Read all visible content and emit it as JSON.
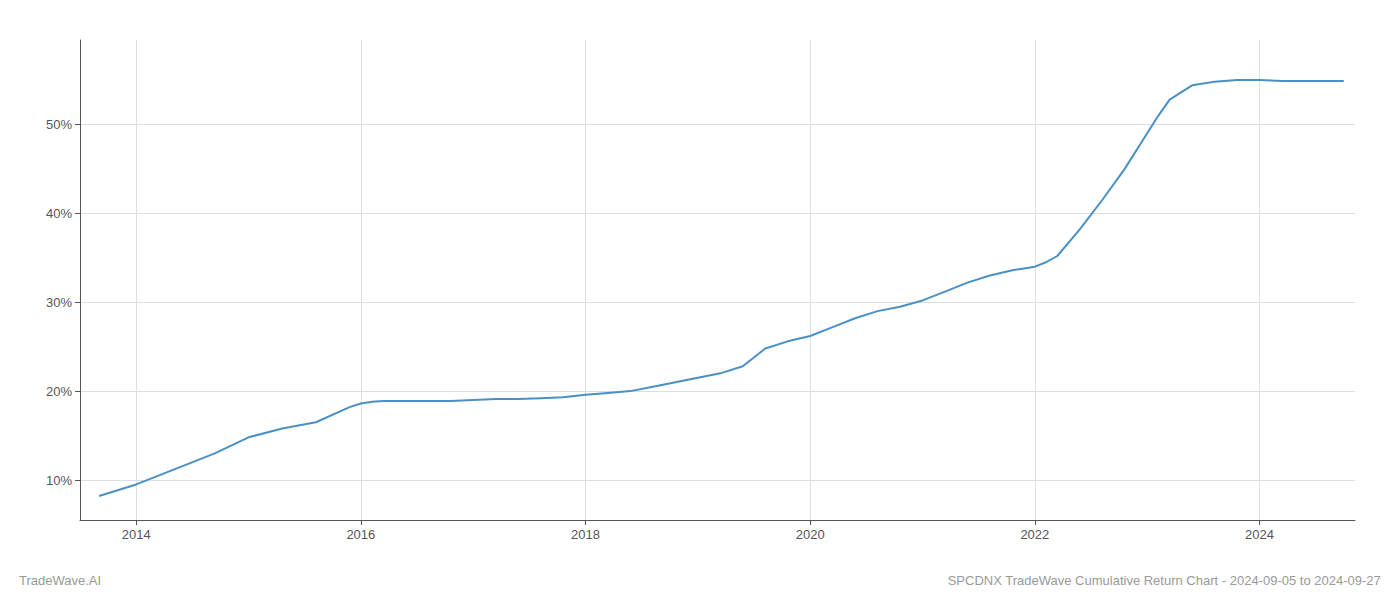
{
  "chart_data": {
    "type": "line",
    "title": "SPCDNX TradeWave Cumulative Return Chart - 2024-09-05 to 2024-09-27",
    "annotations": [
      "TradeWave.AI"
    ],
    "color": "#4a90c4",
    "grid": true,
    "x": [
      2013.67,
      2014.0,
      2014.3,
      2014.7,
      2015.0,
      2015.3,
      2015.6,
      2015.9,
      2016.0,
      2016.1,
      2016.2,
      2016.4,
      2016.6,
      2016.8,
      2017.0,
      2017.2,
      2017.4,
      2017.6,
      2017.8,
      2018.0,
      2018.2,
      2018.4,
      2018.6,
      2018.8,
      2019.0,
      2019.2,
      2019.4,
      2019.6,
      2019.8,
      2020.0,
      2020.2,
      2020.4,
      2020.6,
      2020.8,
      2021.0,
      2021.2,
      2021.4,
      2021.6,
      2021.8,
      2022.0,
      2022.1,
      2022.2,
      2022.4,
      2022.6,
      2022.8,
      2023.0,
      2023.1,
      2023.2,
      2023.4,
      2023.6,
      2023.8,
      2024.0,
      2024.2,
      2024.4,
      2024.6,
      2024.75
    ],
    "values": [
      0.082,
      0.095,
      0.11,
      0.13,
      0.148,
      0.158,
      0.165,
      0.182,
      0.186,
      0.188,
      0.189,
      0.189,
      0.189,
      0.189,
      0.19,
      0.191,
      0.191,
      0.192,
      0.193,
      0.196,
      0.198,
      0.2,
      0.205,
      0.21,
      0.215,
      0.22,
      0.228,
      0.248,
      0.256,
      0.262,
      0.272,
      0.282,
      0.29,
      0.295,
      0.302,
      0.312,
      0.322,
      0.33,
      0.336,
      0.34,
      0.345,
      0.352,
      0.382,
      0.415,
      0.45,
      0.49,
      0.51,
      0.528,
      0.544,
      0.548,
      0.55,
      0.55,
      0.549,
      0.549,
      0.549,
      0.549
    ],
    "xlim": [
      2013.5,
      2024.85
    ],
    "xticks": [
      2014,
      2016,
      2018,
      2020,
      2022,
      2024
    ],
    "ylim": [
      0.055,
      0.595
    ],
    "yticks": [
      {
        "value": 0.1,
        "label": "10%"
      },
      {
        "value": 0.2,
        "label": "20%"
      },
      {
        "value": 0.3,
        "label": "30%"
      },
      {
        "value": 0.4,
        "label": "40%"
      },
      {
        "value": 0.5,
        "label": "50%"
      }
    ]
  }
}
